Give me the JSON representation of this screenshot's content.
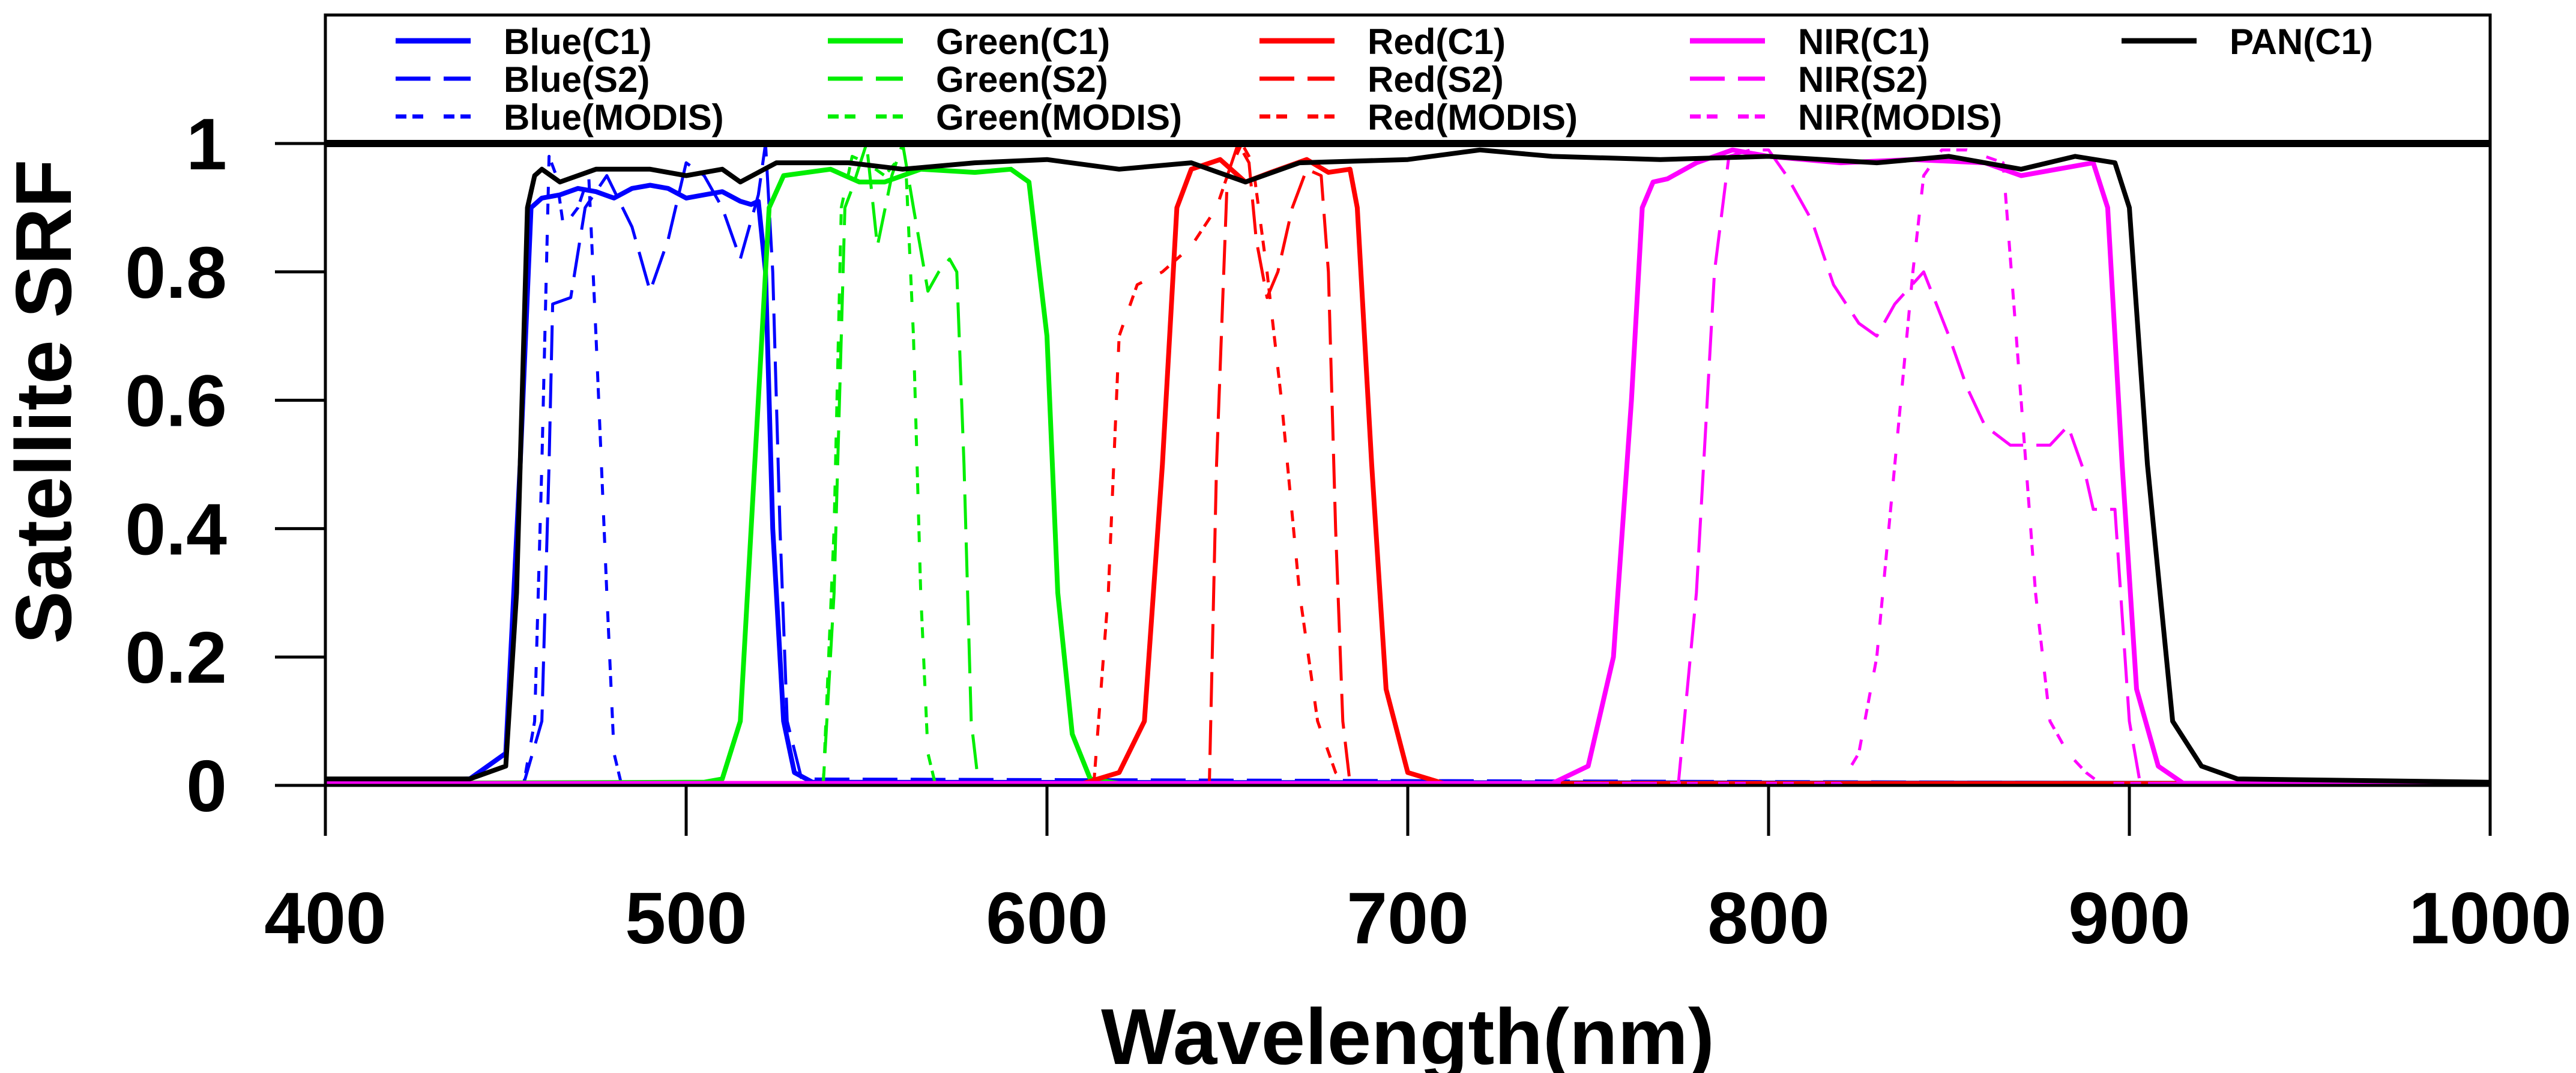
{
  "chart_data": {
    "type": "line",
    "title": "",
    "xlabel": "Wavelength(nm)",
    "ylabel": "Satellite SRF",
    "xlim": [
      400,
      1000
    ],
    "ylim": [
      0,
      1
    ],
    "xticks": [
      "400",
      "500",
      "600",
      "700",
      "800",
      "900",
      "1000"
    ],
    "yticks": [
      "0",
      "0.2",
      "0.4",
      "0.6",
      "0.8",
      "1"
    ],
    "grid": false,
    "legend_position": "top",
    "reference_line_y": 1,
    "series": [
      {
        "name": "Blue(C1)",
        "color": "#0000ff",
        "style": "solid",
        "points": [
          [
            400,
            0.005
          ],
          [
            440,
            0.01
          ],
          [
            450,
            0.05
          ],
          [
            454,
            0.5
          ],
          [
            457,
            0.9
          ],
          [
            460,
            0.915
          ],
          [
            465,
            0.92
          ],
          [
            470,
            0.93
          ],
          [
            475,
            0.925
          ],
          [
            480,
            0.915
          ],
          [
            485,
            0.93
          ],
          [
            490,
            0.935
          ],
          [
            495,
            0.93
          ],
          [
            500,
            0.915
          ],
          [
            505,
            0.92
          ],
          [
            510,
            0.925
          ],
          [
            515,
            0.91
          ],
          [
            518,
            0.905
          ],
          [
            520,
            0.91
          ],
          [
            522,
            0.8
          ],
          [
            524,
            0.4
          ],
          [
            527,
            0.1
          ],
          [
            530,
            0.02
          ],
          [
            535,
            0.005
          ],
          [
            1000,
            0.003
          ]
        ]
      },
      {
        "name": "Blue(S2)",
        "color": "#0000ff",
        "style": "dashed",
        "points": [
          [
            400,
            0.003
          ],
          [
            455,
            0.003
          ],
          [
            460,
            0.1
          ],
          [
            462,
            0.5
          ],
          [
            463,
            0.75
          ],
          [
            468,
            0.76
          ],
          [
            472,
            0.9
          ],
          [
            478,
            0.95
          ],
          [
            485,
            0.87
          ],
          [
            490,
            0.77
          ],
          [
            495,
            0.85
          ],
          [
            500,
            0.97
          ],
          [
            505,
            0.95
          ],
          [
            510,
            0.9
          ],
          [
            515,
            0.82
          ],
          [
            520,
            0.92
          ],
          [
            522,
            1.0
          ],
          [
            524,
            0.8
          ],
          [
            526,
            0.4
          ],
          [
            528,
            0.1
          ],
          [
            532,
            0.01
          ],
          [
            1000,
            0.003
          ]
        ]
      },
      {
        "name": "Blue(MODIS)",
        "color": "#0000ff",
        "style": "dotted",
        "points": [
          [
            400,
            0.003
          ],
          [
            455,
            0.003
          ],
          [
            458,
            0.1
          ],
          [
            460,
            0.5
          ],
          [
            462,
            0.98
          ],
          [
            464,
            0.95
          ],
          [
            466,
            0.87
          ],
          [
            470,
            0.9
          ],
          [
            473,
            0.95
          ],
          [
            475,
            0.7
          ],
          [
            478,
            0.3
          ],
          [
            480,
            0.05
          ],
          [
            482,
            0.003
          ],
          [
            1000,
            0.003
          ]
        ]
      },
      {
        "name": "Green(C1)",
        "color": "#00ee00",
        "style": "solid",
        "points": [
          [
            400,
            0.003
          ],
          [
            505,
            0.005
          ],
          [
            510,
            0.01
          ],
          [
            515,
            0.1
          ],
          [
            520,
            0.6
          ],
          [
            523,
            0.9
          ],
          [
            527,
            0.95
          ],
          [
            540,
            0.96
          ],
          [
            548,
            0.94
          ],
          [
            555,
            0.94
          ],
          [
            565,
            0.96
          ],
          [
            580,
            0.955
          ],
          [
            590,
            0.96
          ],
          [
            595,
            0.94
          ],
          [
            600,
            0.7
          ],
          [
            603,
            0.3
          ],
          [
            607,
            0.08
          ],
          [
            612,
            0.01
          ],
          [
            620,
            0.003
          ],
          [
            1000,
            0.003
          ]
        ]
      },
      {
        "name": "Green(S2)",
        "color": "#00ee00",
        "style": "dashed",
        "points": [
          [
            400,
            0.003
          ],
          [
            538,
            0.003
          ],
          [
            541,
            0.3
          ],
          [
            544,
            0.9
          ],
          [
            546,
            0.93
          ],
          [
            550,
            1.0
          ],
          [
            553,
            0.84
          ],
          [
            557,
            0.95
          ],
          [
            560,
            1.0
          ],
          [
            563,
            0.9
          ],
          [
            567,
            0.77
          ],
          [
            570,
            0.8
          ],
          [
            573,
            0.82
          ],
          [
            575,
            0.8
          ],
          [
            577,
            0.5
          ],
          [
            579,
            0.1
          ],
          [
            581,
            0.003
          ],
          [
            1000,
            0.003
          ]
        ]
      },
      {
        "name": "Green(MODIS)",
        "color": "#00ee00",
        "style": "dotted",
        "points": [
          [
            400,
            0.003
          ],
          [
            538,
            0.003
          ],
          [
            541,
            0.4
          ],
          [
            543,
            0.9
          ],
          [
            546,
            0.98
          ],
          [
            550,
            0.97
          ],
          [
            555,
            0.95
          ],
          [
            558,
            0.97
          ],
          [
            561,
            0.95
          ],
          [
            563,
            0.7
          ],
          [
            565,
            0.3
          ],
          [
            567,
            0.05
          ],
          [
            569,
            0.003
          ],
          [
            1000,
            0.003
          ]
        ]
      },
      {
        "name": "Red(C1)",
        "color": "#ff0000",
        "style": "solid",
        "points": [
          [
            400,
            0.003
          ],
          [
            610,
            0.003
          ],
          [
            620,
            0.02
          ],
          [
            627,
            0.1
          ],
          [
            632,
            0.5
          ],
          [
            636,
            0.9
          ],
          [
            640,
            0.96
          ],
          [
            648,
            0.975
          ],
          [
            655,
            0.94
          ],
          [
            662,
            0.955
          ],
          [
            672,
            0.975
          ],
          [
            678,
            0.955
          ],
          [
            684,
            0.96
          ],
          [
            686,
            0.9
          ],
          [
            690,
            0.5
          ],
          [
            694,
            0.15
          ],
          [
            700,
            0.02
          ],
          [
            710,
            0.003
          ],
          [
            1000,
            0.003
          ]
        ]
      },
      {
        "name": "Red(S2)",
        "color": "#ff0000",
        "style": "dashed",
        "points": [
          [
            400,
            0.003
          ],
          [
            645,
            0.003
          ],
          [
            647,
            0.5
          ],
          [
            650,
            0.95
          ],
          [
            653,
            1.0
          ],
          [
            656,
            0.97
          ],
          [
            658,
            0.85
          ],
          [
            661,
            0.76
          ],
          [
            664,
            0.8
          ],
          [
            668,
            0.9
          ],
          [
            672,
            0.96
          ],
          [
            676,
            0.95
          ],
          [
            678,
            0.8
          ],
          [
            680,
            0.4
          ],
          [
            682,
            0.1
          ],
          [
            684,
            0.003
          ],
          [
            1000,
            0.003
          ]
        ]
      },
      {
        "name": "Red(MODIS)",
        "color": "#ff0000",
        "style": "dotted",
        "points": [
          [
            400,
            0.003
          ],
          [
            613,
            0.003
          ],
          [
            617,
            0.3
          ],
          [
            620,
            0.7
          ],
          [
            625,
            0.78
          ],
          [
            632,
            0.8
          ],
          [
            640,
            0.84
          ],
          [
            647,
            0.9
          ],
          [
            650,
            0.95
          ],
          [
            654,
            1.0
          ],
          [
            657,
            0.97
          ],
          [
            661,
            0.8
          ],
          [
            665,
            0.6
          ],
          [
            670,
            0.3
          ],
          [
            675,
            0.1
          ],
          [
            680,
            0.02
          ],
          [
            683,
            0.003
          ],
          [
            1000,
            0.003
          ]
        ]
      },
      {
        "name": "NIR(C1)",
        "color": "#ff00ff",
        "style": "solid",
        "points": [
          [
            400,
            0.003
          ],
          [
            740,
            0.003
          ],
          [
            750,
            0.03
          ],
          [
            757,
            0.2
          ],
          [
            762,
            0.6
          ],
          [
            765,
            0.9
          ],
          [
            768,
            0.94
          ],
          [
            772,
            0.945
          ],
          [
            780,
            0.97
          ],
          [
            790,
            0.99
          ],
          [
            800,
            0.98
          ],
          [
            820,
            0.97
          ],
          [
            840,
            0.975
          ],
          [
            860,
            0.97
          ],
          [
            870,
            0.95
          ],
          [
            880,
            0.96
          ],
          [
            890,
            0.97
          ],
          [
            894,
            0.9
          ],
          [
            898,
            0.5
          ],
          [
            902,
            0.15
          ],
          [
            908,
            0.03
          ],
          [
            915,
            0.003
          ],
          [
            1000,
            0.003
          ]
        ]
      },
      {
        "name": "NIR(S2)",
        "color": "#ff00ff",
        "style": "dashed",
        "points": [
          [
            400,
            0.003
          ],
          [
            775,
            0.003
          ],
          [
            780,
            0.3
          ],
          [
            785,
            0.8
          ],
          [
            789,
            0.98
          ],
          [
            795,
            0.99
          ],
          [
            800,
            0.99
          ],
          [
            805,
            0.95
          ],
          [
            812,
            0.88
          ],
          [
            818,
            0.78
          ],
          [
            825,
            0.72
          ],
          [
            830,
            0.7
          ],
          [
            835,
            0.75
          ],
          [
            843,
            0.8
          ],
          [
            850,
            0.7
          ],
          [
            855,
            0.62
          ],
          [
            860,
            0.56
          ],
          [
            867,
            0.53
          ],
          [
            878,
            0.53
          ],
          [
            883,
            0.56
          ],
          [
            888,
            0.48
          ],
          [
            890,
            0.43
          ],
          [
            896,
            0.43
          ],
          [
            900,
            0.1
          ],
          [
            903,
            0.003
          ],
          [
            1000,
            0.003
          ]
        ]
      },
      {
        "name": "NIR(MODIS)",
        "color": "#ff00ff",
        "style": "dotted",
        "points": [
          [
            400,
            0.003
          ],
          [
            820,
            0.003
          ],
          [
            825,
            0.05
          ],
          [
            830,
            0.2
          ],
          [
            835,
            0.5
          ],
          [
            840,
            0.8
          ],
          [
            843,
            0.95
          ],
          [
            848,
            0.99
          ],
          [
            855,
            0.99
          ],
          [
            860,
            0.98
          ],
          [
            865,
            0.97
          ],
          [
            870,
            0.6
          ],
          [
            874,
            0.3
          ],
          [
            878,
            0.1
          ],
          [
            883,
            0.05
          ],
          [
            888,
            0.02
          ],
          [
            892,
            0.003
          ],
          [
            1000,
            0.003
          ]
        ]
      },
      {
        "name": "PAN(C1)",
        "color": "#000000",
        "style": "solid",
        "points": [
          [
            400,
            0.01
          ],
          [
            440,
            0.01
          ],
          [
            450,
            0.03
          ],
          [
            453,
            0.3
          ],
          [
            456,
            0.9
          ],
          [
            458,
            0.95
          ],
          [
            460,
            0.96
          ],
          [
            465,
            0.94
          ],
          [
            475,
            0.96
          ],
          [
            490,
            0.96
          ],
          [
            500,
            0.95
          ],
          [
            510,
            0.96
          ],
          [
            515,
            0.94
          ],
          [
            525,
            0.97
          ],
          [
            545,
            0.97
          ],
          [
            560,
            0.96
          ],
          [
            580,
            0.97
          ],
          [
            600,
            0.975
          ],
          [
            620,
            0.96
          ],
          [
            640,
            0.97
          ],
          [
            655,
            0.94
          ],
          [
            670,
            0.97
          ],
          [
            700,
            0.975
          ],
          [
            720,
            0.99
          ],
          [
            740,
            0.98
          ],
          [
            770,
            0.975
          ],
          [
            800,
            0.98
          ],
          [
            830,
            0.97
          ],
          [
            850,
            0.98
          ],
          [
            870,
            0.96
          ],
          [
            885,
            0.98
          ],
          [
            896,
            0.97
          ],
          [
            900,
            0.9
          ],
          [
            905,
            0.5
          ],
          [
            912,
            0.1
          ],
          [
            920,
            0.03
          ],
          [
            930,
            0.01
          ],
          [
            1000,
            0.005
          ]
        ]
      }
    ]
  }
}
